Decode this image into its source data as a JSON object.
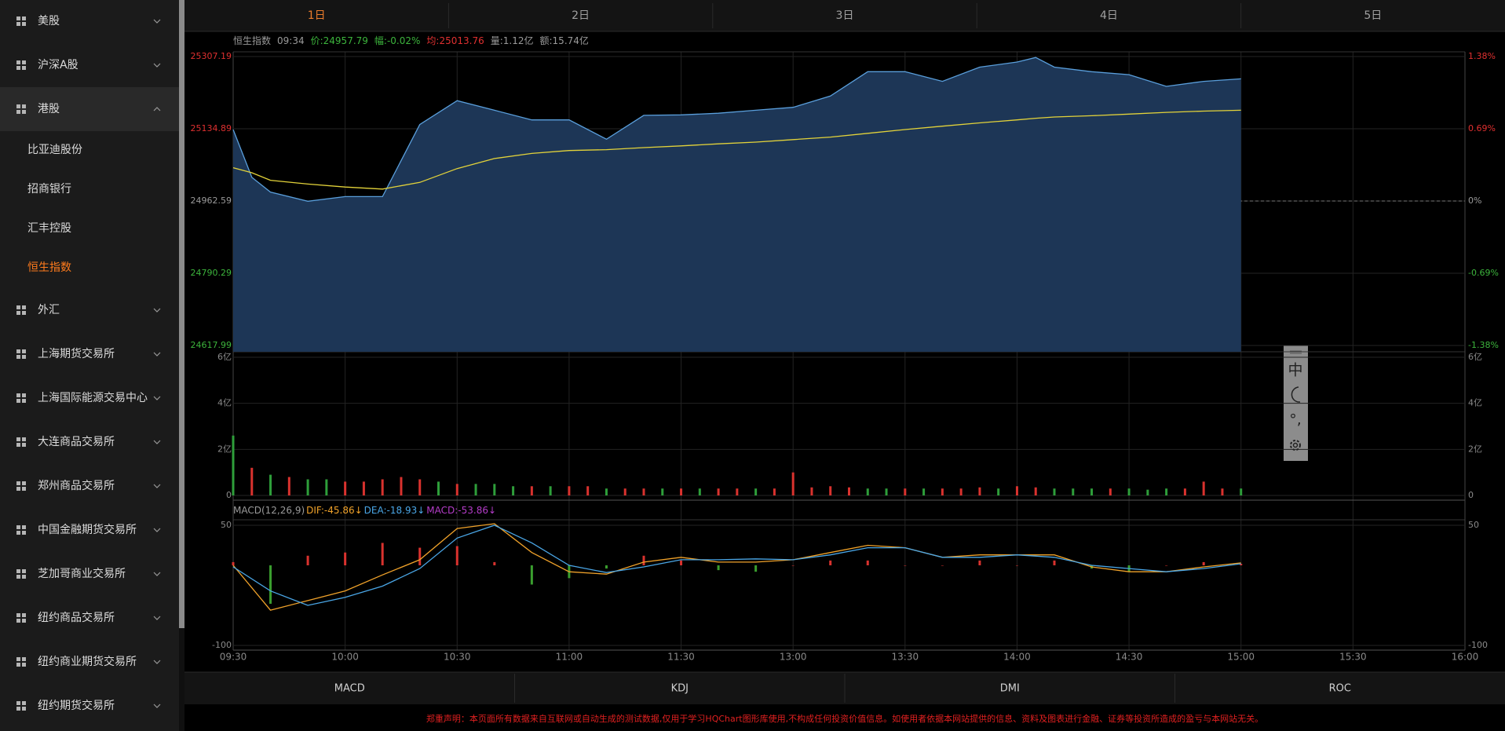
{
  "sidebar": {
    "items": [
      {
        "label": "美股"
      },
      {
        "label": "沪深A股"
      },
      {
        "label": "港股",
        "children": [
          {
            "label": "比亚迪股份"
          },
          {
            "label": "招商银行"
          },
          {
            "label": "汇丰控股"
          },
          {
            "label": "恒生指数",
            "active": true
          }
        ]
      },
      {
        "label": "外汇"
      },
      {
        "label": "上海期货交易所"
      },
      {
        "label": "上海国际能源交易中心"
      },
      {
        "label": "大连商品交易所"
      },
      {
        "label": "郑州商品交易所"
      },
      {
        "label": "中国金融期货交易所"
      },
      {
        "label": "芝加哥商业交易所"
      },
      {
        "label": "纽约商品交易所"
      },
      {
        "label": "纽约商业期货交易所"
      },
      {
        "label": "纽约期货交易所"
      }
    ]
  },
  "tabs": [
    {
      "label": "1日",
      "active": true
    },
    {
      "label": "2日"
    },
    {
      "label": "3日"
    },
    {
      "label": "4日"
    },
    {
      "label": "5日"
    }
  ],
  "info": [
    {
      "text": "恒生指数",
      "color": "#9a9a9a"
    },
    {
      "text": "09:34",
      "color": "#9a9a9a"
    },
    {
      "text": "价:24957.79",
      "color": "#3cb43c"
    },
    {
      "text": "幅:-0.02%",
      "color": "#3cb43c"
    },
    {
      "text": "均:25013.76",
      "color": "#e03030"
    },
    {
      "text": "量:1.12亿",
      "color": "#9a9a9a"
    },
    {
      "text": "额:15.74亿",
      "color": "#9a9a9a"
    }
  ],
  "chart_data": [
    {
      "type": "area",
      "x": [
        0,
        5,
        10,
        20,
        30,
        40,
        50,
        60,
        70,
        80,
        90,
        100,
        110,
        120,
        130,
        140,
        150,
        160,
        170,
        180,
        190,
        200,
        210,
        215,
        220,
        230,
        240,
        250,
        260,
        270
      ],
      "series": [
        {
          "type": "area",
          "color": "#5a9fdc",
          "fill": "#1d3656",
          "values": [
            25133,
            25019,
            24984,
            24962,
            24973,
            24973,
            25145,
            25202,
            25179,
            25156,
            25156,
            25110,
            25167,
            25168,
            25172,
            25179,
            25186,
            25213,
            25271,
            25271,
            25248,
            25282,
            25294,
            25305,
            25282,
            25271,
            25264,
            25236,
            25248,
            25254
          ]
        },
        {
          "type": "line",
          "color": "#e3d33a",
          "values": [
            25042,
            25030,
            25012,
            25003,
            24996,
            24991,
            25007,
            25040,
            25064,
            25076,
            25083,
            25085,
            25090,
            25094,
            25099,
            25103,
            25109,
            25115,
            25124,
            25133,
            25141,
            25149,
            25156,
            25160,
            25163,
            25166,
            25170,
            25174,
            25177,
            25179
          ]
        }
      ],
      "ylim": [
        24617.99,
        25307.19
      ],
      "yticks": [
        24617.99,
        24790.29,
        24962.59,
        25134.89,
        25307.19
      ],
      "baseline": 24962.59,
      "y2lim": [
        -1.38,
        1.38
      ],
      "y2ticks": [
        {
          "value": -1.38,
          "label": "-1.38%"
        },
        {
          "value": -0.69,
          "label": "-0.69%"
        },
        {
          "value": 0,
          "label": "0%"
        },
        {
          "value": 0.69,
          "label": "0.69%"
        },
        {
          "value": 1.38,
          "label": "1.38%"
        }
      ],
      "up_color": "#e03030",
      "down_color": "#3cb43c",
      "flat_color": "#9a9a9a"
    },
    {
      "type": "bar",
      "x": [
        0,
        5,
        10,
        15,
        20,
        25,
        30,
        35,
        40,
        45,
        50,
        55,
        60,
        65,
        70,
        75,
        80,
        85,
        90,
        95,
        100,
        105,
        110,
        115,
        120,
        125,
        130,
        135,
        140,
        145,
        150,
        155,
        160,
        165,
        170,
        175,
        180,
        185,
        190,
        195,
        200,
        205,
        210,
        215,
        220,
        225,
        230,
        235,
        240,
        245,
        250,
        255,
        260,
        265,
        270
      ],
      "series": [
        {
          "type": "bar",
          "values": [
            2.6,
            1.2,
            0.9,
            0.8,
            0.7,
            0.7,
            0.6,
            0.6,
            0.7,
            0.8,
            0.7,
            0.6,
            0.5,
            0.5,
            0.5,
            0.4,
            0.4,
            0.4,
            0.4,
            0.4,
            0.3,
            0.3,
            0.3,
            0.3,
            0.3,
            0.3,
            0.3,
            0.3,
            0.3,
            0.3,
            1.0,
            0.35,
            0.4,
            0.35,
            0.3,
            0.3,
            0.3,
            0.3,
            0.3,
            0.3,
            0.35,
            0.3,
            0.4,
            0.35,
            0.3,
            0.3,
            0.3,
            0.3,
            0.3,
            0.25,
            0.3,
            0.3,
            0.6,
            0.3,
            0.3
          ],
          "colors": [
            "#2e9e3a",
            "#d9322e",
            "#2e9e3a",
            "#d9322e",
            "#2e9e3a",
            "#2e9e3a",
            "#d9322e",
            "#d9322e",
            "#d9322e",
            "#d9322e",
            "#d9322e",
            "#2e9e3a",
            "#d9322e",
            "#2e9e3a",
            "#2e9e3a",
            "#2e9e3a",
            "#d9322e",
            "#2e9e3a",
            "#d9322e",
            "#d9322e",
            "#2e9e3a",
            "#d9322e",
            "#d9322e",
            "#2e9e3a",
            "#d9322e",
            "#2e9e3a",
            "#d9322e",
            "#d9322e",
            "#2e9e3a",
            "#d9322e",
            "#d9322e",
            "#d9322e",
            "#d9322e",
            "#d9322e",
            "#2e9e3a",
            "#2e9e3a",
            "#d9322e",
            "#2e9e3a",
            "#d9322e",
            "#d9322e",
            "#d9322e",
            "#2e9e3a",
            "#d9322e",
            "#d9322e",
            "#2e9e3a",
            "#2e9e3a",
            "#2e9e3a",
            "#d9322e",
            "#2e9e3a",
            "#2e9e3a",
            "#2e9e3a",
            "#d9322e",
            "#d9322e",
            "#d9322e",
            "#2e9e3a"
          ]
        }
      ],
      "ylim": [
        0,
        6
      ],
      "yticks": [
        0,
        {
          "value": 2,
          "label": "2亿"
        },
        {
          "value": 4,
          "label": "4亿"
        },
        {
          "value": 6,
          "label": "6亿"
        }
      ]
    },
    {
      "type": "combo",
      "title": "MACD(12,26,9)",
      "x": [
        0,
        10,
        20,
        30,
        40,
        50,
        60,
        70,
        80,
        90,
        100,
        110,
        120,
        130,
        140,
        150,
        160,
        170,
        180,
        190,
        200,
        210,
        220,
        230,
        240,
        250,
        260,
        270
      ],
      "series": [
        {
          "type": "line",
          "name": "DIF:-45.86↓",
          "color": "#f0a22a",
          "values": [
            0,
            -56,
            -44,
            -32,
            -12,
            7,
            46,
            52,
            16,
            -8,
            -11,
            4,
            10,
            4,
            4,
            7,
            16,
            25,
            22,
            10,
            13,
            13,
            13,
            -2,
            -8,
            -8,
            -2,
            3
          ]
        },
        {
          "type": "line",
          "name": "DEA:-18.93↓",
          "color": "#4aa6e6",
          "values": [
            -2,
            -32,
            -50,
            -40,
            -26,
            -4,
            34,
            50,
            28,
            0,
            -9,
            -2,
            7,
            7,
            8,
            7,
            13,
            22,
            22,
            10,
            10,
            13,
            10,
            0,
            -4,
            -8,
            -4,
            2
          ]
        },
        {
          "type": "bar",
          "name": "MACD:-53.86↓",
          "color": "#b43cc8",
          "up_color": "#d9322e",
          "down_color": "#3a9e2e",
          "values": [
            4,
            -48,
            12,
            16,
            28,
            22,
            24,
            4,
            -24,
            -16,
            -4,
            12,
            6,
            -6,
            -8,
            0,
            6,
            6,
            0,
            0,
            6,
            0,
            6,
            -4,
            -8,
            0,
            4,
            2
          ]
        }
      ],
      "ylim": [
        -100,
        50
      ],
      "yticks": [
        -100,
        50
      ],
      "xlim": [
        0,
        330
      ],
      "xticks": [
        {
          "value": 0,
          "label": "09:30"
        },
        {
          "value": 30,
          "label": "10:00"
        },
        {
          "value": 60,
          "label": "10:30"
        },
        {
          "value": 90,
          "label": "11:00"
        },
        {
          "value": 120,
          "label": "11:30"
        },
        {
          "value": 150,
          "label": "13:00"
        },
        {
          "value": 180,
          "label": "13:30"
        },
        {
          "value": 210,
          "label": "14:00"
        },
        {
          "value": 240,
          "label": "14:30"
        },
        {
          "value": 270,
          "label": "15:00"
        },
        {
          "value": 300,
          "label": "15:30"
        },
        {
          "value": 330,
          "label": "16:00"
        }
      ],
      "grid": true
    }
  ],
  "indicator_tabs": [
    "MACD",
    "KDJ",
    "DMI",
    "ROC"
  ],
  "disclaimer": "郑重声明：本页面所有数据来自互联网或自动生成的测试数据,仅用于学习HQChart图形库使用,不构成任何投资价值信息。如使用者依据本网站提供的信息、资料及图表进行金融、证券等投资所造成的盈亏与本网站无关。",
  "ime_toolbar": [
    "中",
    "°,"
  ]
}
